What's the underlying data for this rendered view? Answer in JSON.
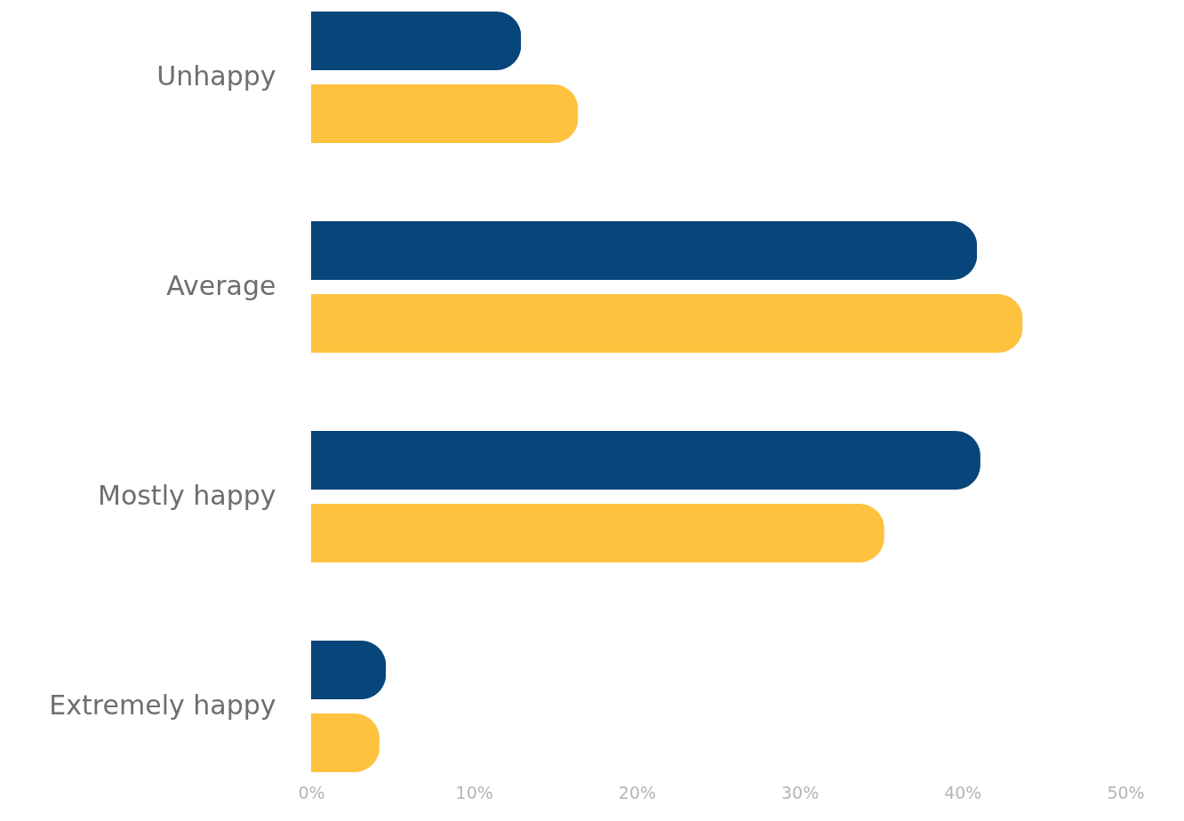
{
  "chart_data": {
    "type": "bar",
    "orientation": "horizontal",
    "categories": [
      "Unhappy",
      "Average",
      "Mostly happy",
      "Extremely happy"
    ],
    "series": [
      {
        "color": "#08457a",
        "values": [
          12.9,
          40.9,
          41.1,
          4.6
        ]
      },
      {
        "color": "#ffc23f",
        "values": [
          16.4,
          43.7,
          35.2,
          4.2
        ]
      }
    ],
    "xlim": [
      0,
      50
    ],
    "xticks": [
      {
        "value": 0,
        "label": "0%"
      },
      {
        "value": 10,
        "label": "10%"
      },
      {
        "value": 20,
        "label": "20%"
      },
      {
        "value": 30,
        "label": "30%"
      },
      {
        "value": 40,
        "label": "40%"
      },
      {
        "value": 50,
        "label": "50%"
      }
    ],
    "grid": false
  }
}
